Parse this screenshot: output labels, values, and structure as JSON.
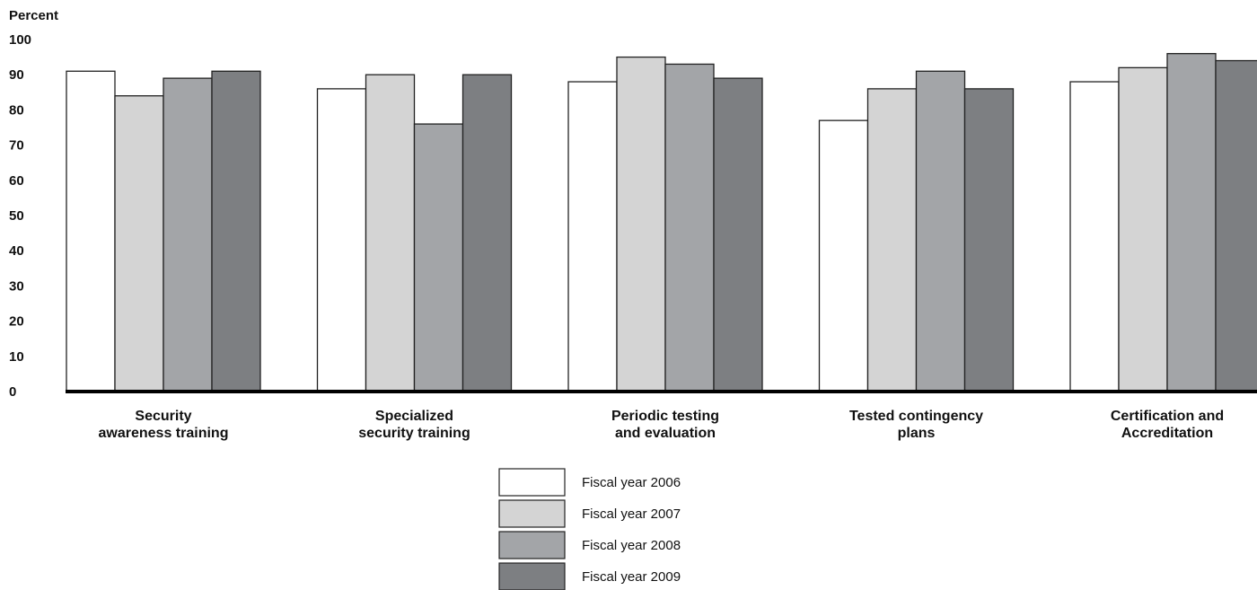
{
  "chart_data": {
    "type": "bar",
    "ylabel": "Percent",
    "ylim": [
      0,
      100
    ],
    "yticks": [
      0,
      10,
      20,
      30,
      40,
      50,
      60,
      70,
      80,
      90,
      100
    ],
    "grid": false,
    "legend_position": "bottom-center",
    "categories": [
      [
        "Security",
        "awareness training"
      ],
      [
        "Specialized",
        "security training"
      ],
      [
        "Periodic testing",
        "and evaluation"
      ],
      [
        "Tested contingency",
        "plans"
      ],
      [
        "Certification and",
        "Accreditation"
      ]
    ],
    "series": [
      {
        "name": "Fiscal year 2006",
        "color": "#ffffff",
        "values": [
          91,
          86,
          88,
          77,
          88
        ]
      },
      {
        "name": "Fiscal year 2007",
        "color": "#d4d4d4",
        "values": [
          84,
          90,
          95,
          86,
          92
        ]
      },
      {
        "name": "Fiscal year 2008",
        "color": "#a3a5a8",
        "values": [
          89,
          76,
          93,
          91,
          96
        ]
      },
      {
        "name": "Fiscal year 2009",
        "color": "#7d7f82",
        "values": [
          91,
          90,
          89,
          86,
          94
        ]
      }
    ]
  }
}
